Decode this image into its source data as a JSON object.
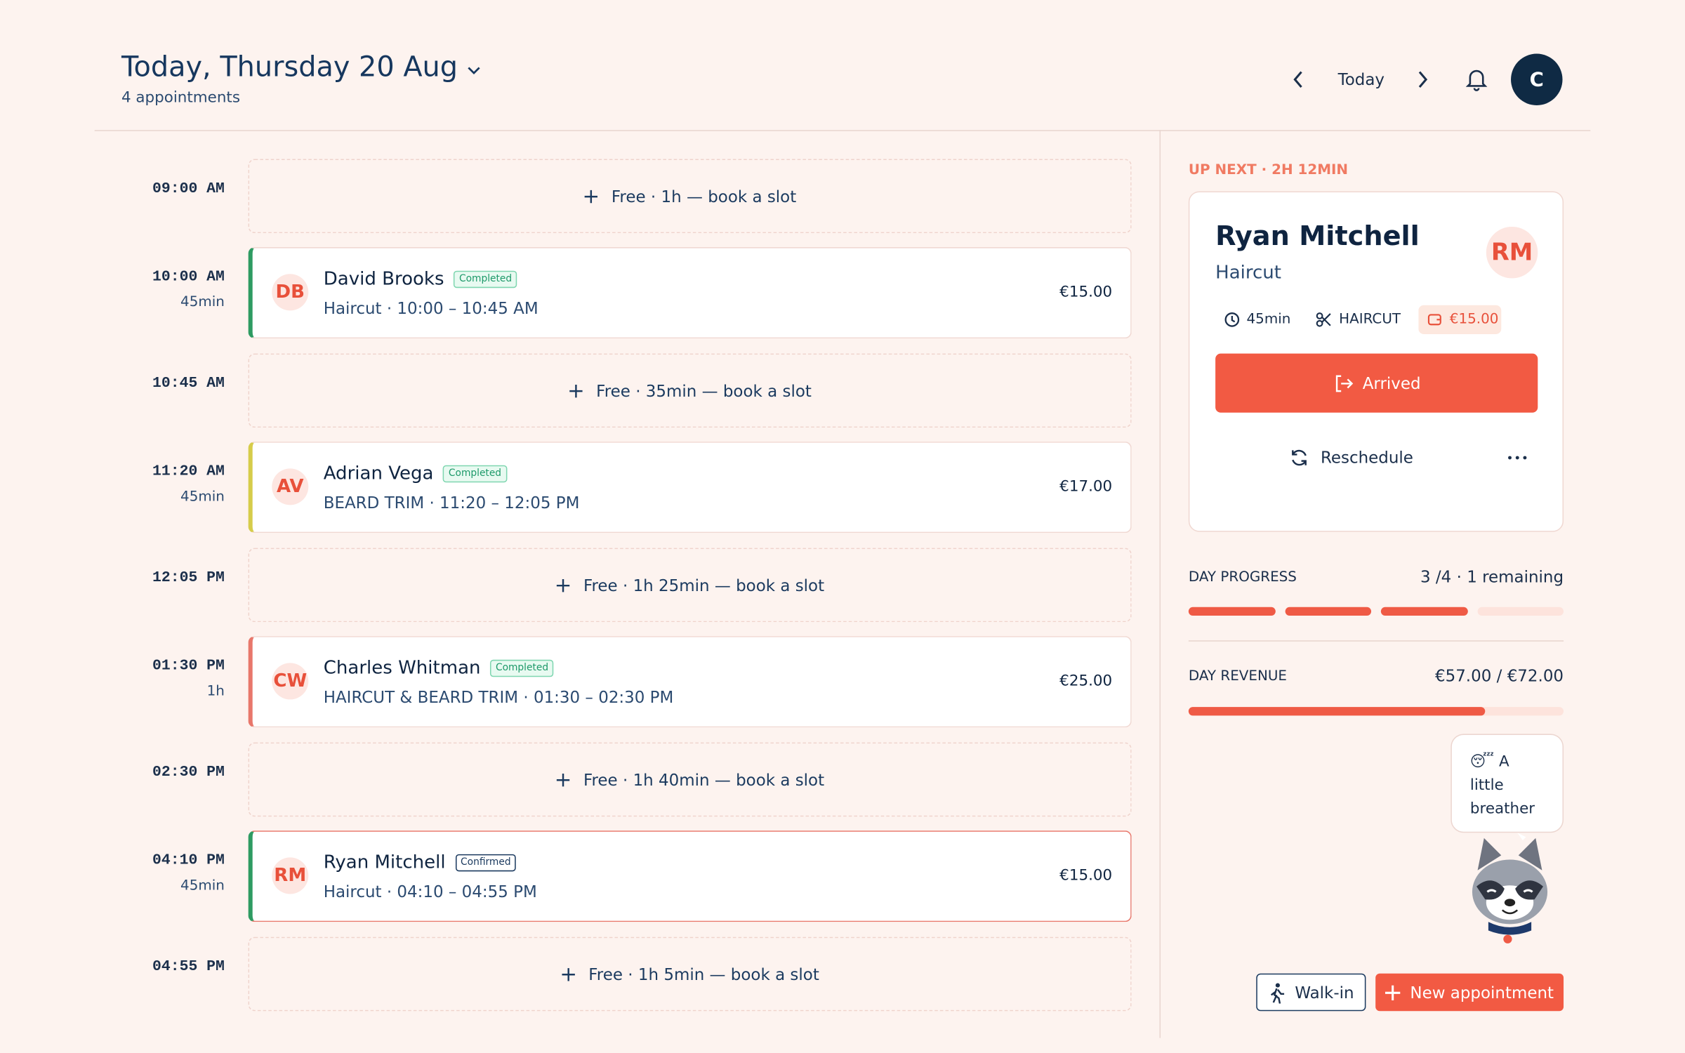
{
  "header": {
    "title": "Today, Thursday 20 Aug",
    "subtitle": "4 appointments",
    "today": "Today",
    "avatar": "C"
  },
  "timeline": [
    {
      "time": "09:00 AM",
      "free": "Free · 1h — book a slot"
    },
    {
      "time": "10:00 AM",
      "duration": "45min",
      "initials": "DB",
      "name": "David Brooks",
      "status": "Completed",
      "service": "Haircut · 10:00 – 10:45 AM",
      "price": "€15.00",
      "accent": "#2e9b62"
    },
    {
      "time": "10:45 AM",
      "free": "Free · 35min — book a slot"
    },
    {
      "time": "11:20 AM",
      "duration": "45min",
      "initials": "AV",
      "name": "Adrian Vega",
      "status": "Completed",
      "service": "BEARD TRIM · 11:20 – 12:05 PM",
      "price": "€17.00",
      "accent": "#d6cc4a"
    },
    {
      "time": "12:05 PM",
      "free": "Free · 1h 25min — book a slot"
    },
    {
      "time": "01:30 PM",
      "duration": "1h",
      "initials": "CW",
      "name": "Charles Whitman",
      "status": "Completed",
      "service": "HAIRCUT & BEARD TRIM · 01:30 – 02:30 PM",
      "price": "€25.00",
      "accent": "#e8776b"
    },
    {
      "time": "02:30 PM",
      "free": "Free · 1h 40min — book a slot"
    },
    {
      "time": "04:10 PM",
      "duration": "45min",
      "initials": "RM",
      "name": "Ryan Mitchell",
      "status": "Confirmed",
      "service": "Haircut · 04:10 – 04:55 PM",
      "price": "€15.00",
      "accent": "#2e9b62",
      "highlight": true
    },
    {
      "time": "04:55 PM",
      "free": "Free · 1h 5min — book a slot"
    }
  ],
  "up_next": {
    "label": "UP NEXT · 2H 12MIN",
    "name": "Ryan Mitchell",
    "service": "Haircut",
    "initials": "RM",
    "duration": "45min",
    "category": "HAIRCUT",
    "price": "€15.00",
    "primary_action": "Arrived",
    "secondary_action": "Reschedule"
  },
  "progress": {
    "label": "DAY PROGRESS",
    "done": 3,
    "total": {
      "value": 4,
      "label": "/4"
    },
    "remaining": "· 1 remaining"
  },
  "revenue": {
    "label": "DAY REVENUE",
    "earned": {
      "value": 57,
      "label": "€57.00"
    },
    "expected": {
      "value": 72,
      "label": "/ €72.00"
    }
  },
  "mascot": {
    "message": "😴 A little breather"
  },
  "actions": {
    "walk_in": "Walk-in",
    "new_appointment": "New appointment"
  }
}
